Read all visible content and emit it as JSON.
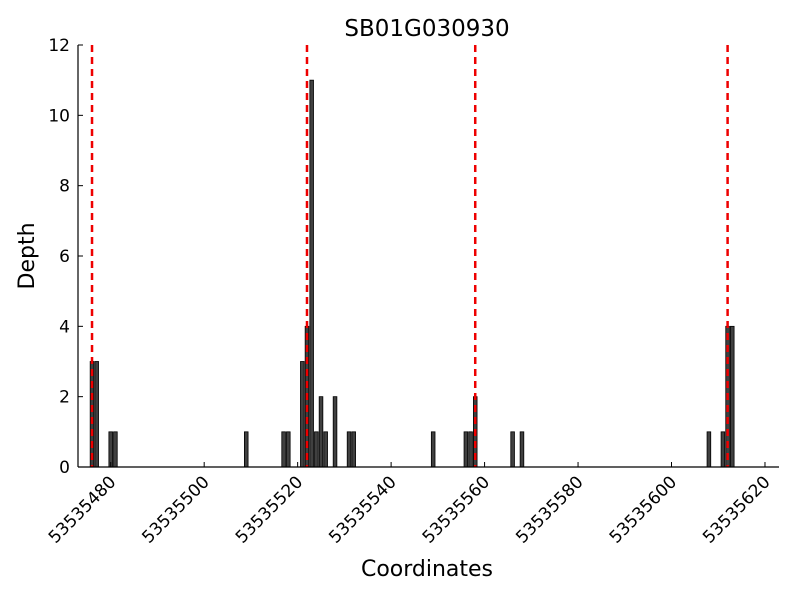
{
  "chart_data": {
    "type": "bar",
    "title": "SB01G030930",
    "xlabel": "Coordinates",
    "ylabel": "Depth",
    "xlim": [
      53535473,
      53535623
    ],
    "ylim": [
      0,
      12
    ],
    "xticks": [
      "53535480",
      "53535500",
      "53535520",
      "53535540",
      "53535560",
      "53535580",
      "53535600",
      "53535620"
    ],
    "yticks": [
      "0",
      "2",
      "4",
      "6",
      "8",
      "10",
      "12"
    ],
    "grid": false,
    "bar_color": "#404040",
    "reference_line_color": "#ee0000",
    "reference_lines": [
      53535476,
      53535522,
      53535558,
      53535612
    ],
    "series": [
      {
        "x": [
          53535476,
          53535477,
          53535480,
          53535481,
          53535509,
          53535517,
          53535518,
          53535521,
          53535522,
          53535523,
          53535524,
          53535525,
          53535526,
          53535528,
          53535531,
          53535532,
          53535549,
          53535556,
          53535557,
          53535558,
          53535566,
          53535568,
          53535608,
          53535611,
          53535612,
          53535613
        ],
        "values": [
          3,
          3,
          1,
          1,
          1,
          1,
          1,
          3,
          4,
          11,
          1,
          2,
          1,
          2,
          1,
          1,
          1,
          1,
          1,
          2,
          1,
          1,
          1,
          1,
          4,
          4
        ]
      }
    ]
  }
}
